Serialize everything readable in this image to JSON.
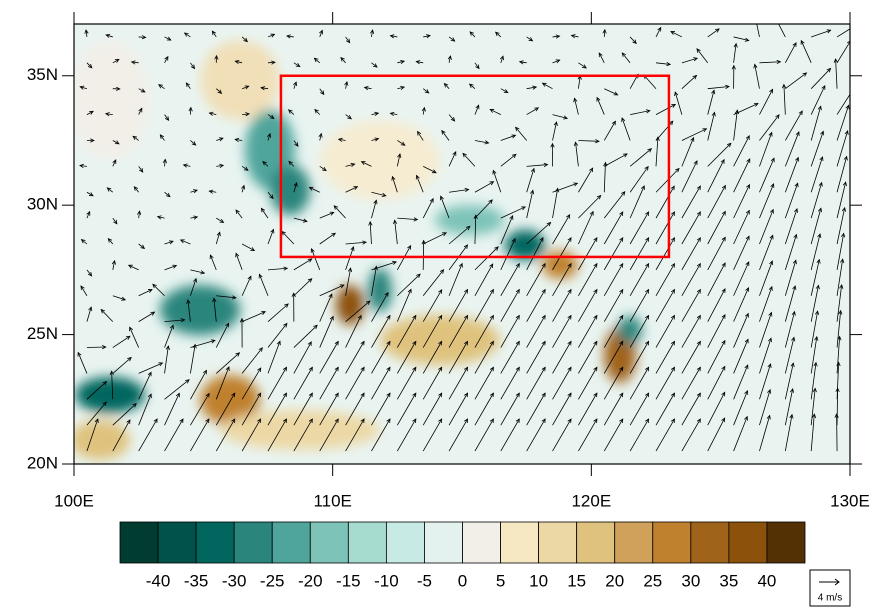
{
  "map": {
    "lon_range": [
      100,
      130
    ],
    "lat_range": [
      20,
      37
    ],
    "lon_ticks": [
      {
        "value": 100,
        "label": "100E"
      },
      {
        "value": 110,
        "label": "110E"
      },
      {
        "value": 120,
        "label": "120E"
      },
      {
        "value": 130,
        "label": "130E"
      }
    ],
    "lat_ticks": [
      {
        "value": 20,
        "label": "20N"
      },
      {
        "value": 25,
        "label": "25N"
      },
      {
        "value": 30,
        "label": "30N"
      },
      {
        "value": 35,
        "label": "35N"
      }
    ],
    "box": {
      "lon": [
        108,
        123
      ],
      "lat": [
        28,
        35
      ],
      "color": "#ff0000"
    }
  },
  "colorbar": {
    "levels": [
      -40,
      -35,
      -30,
      -25,
      -20,
      -15,
      -10,
      -5,
      0,
      5,
      10,
      15,
      20,
      25,
      30,
      35,
      40
    ],
    "colors": [
      "#003c30",
      "#00524a",
      "#01665e",
      "#2a857d",
      "#4fa59c",
      "#7dc3b8",
      "#a6dbd0",
      "#c7eae5",
      "#e3f2ef",
      "#f2efe9",
      "#f6e8c3",
      "#ecd8a5",
      "#dfc27d",
      "#cfa15a",
      "#bf812d",
      "#a0631a",
      "#8c510a",
      "#543005"
    ]
  },
  "reference_vector": {
    "label": "4 m/s"
  }
}
